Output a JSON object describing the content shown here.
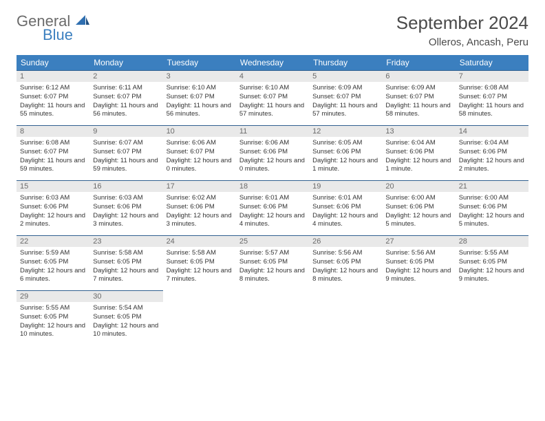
{
  "brand": {
    "line1": "General",
    "line2": "Blue"
  },
  "title": "September 2024",
  "location": "Olleros, Ancash, Peru",
  "colors": {
    "header_bg": "#3b7fbf",
    "header_fg": "#ffffff",
    "daynum_bg": "#e9e9e9",
    "daynum_fg": "#6a6a6a",
    "row_border": "#2f5f8f",
    "logo_gray": "#6b6b6b",
    "logo_blue": "#3b7fbf",
    "text": "#333333"
  },
  "calendar": {
    "type": "table",
    "columns": [
      "Sunday",
      "Monday",
      "Tuesday",
      "Wednesday",
      "Thursday",
      "Friday",
      "Saturday"
    ],
    "col_width_pct": 14.28,
    "header_fontsize": 12,
    "cell_fontsize": 9.5,
    "daynum_fontsize": 11
  },
  "days": [
    {
      "n": "1",
      "sunrise": "Sunrise: 6:12 AM",
      "sunset": "Sunset: 6:07 PM",
      "day": "Daylight: 11 hours and 55 minutes."
    },
    {
      "n": "2",
      "sunrise": "Sunrise: 6:11 AM",
      "sunset": "Sunset: 6:07 PM",
      "day": "Daylight: 11 hours and 56 minutes."
    },
    {
      "n": "3",
      "sunrise": "Sunrise: 6:10 AM",
      "sunset": "Sunset: 6:07 PM",
      "day": "Daylight: 11 hours and 56 minutes."
    },
    {
      "n": "4",
      "sunrise": "Sunrise: 6:10 AM",
      "sunset": "Sunset: 6:07 PM",
      "day": "Daylight: 11 hours and 57 minutes."
    },
    {
      "n": "5",
      "sunrise": "Sunrise: 6:09 AM",
      "sunset": "Sunset: 6:07 PM",
      "day": "Daylight: 11 hours and 57 minutes."
    },
    {
      "n": "6",
      "sunrise": "Sunrise: 6:09 AM",
      "sunset": "Sunset: 6:07 PM",
      "day": "Daylight: 11 hours and 58 minutes."
    },
    {
      "n": "7",
      "sunrise": "Sunrise: 6:08 AM",
      "sunset": "Sunset: 6:07 PM",
      "day": "Daylight: 11 hours and 58 minutes."
    },
    {
      "n": "8",
      "sunrise": "Sunrise: 6:08 AM",
      "sunset": "Sunset: 6:07 PM",
      "day": "Daylight: 11 hours and 59 minutes."
    },
    {
      "n": "9",
      "sunrise": "Sunrise: 6:07 AM",
      "sunset": "Sunset: 6:07 PM",
      "day": "Daylight: 11 hours and 59 minutes."
    },
    {
      "n": "10",
      "sunrise": "Sunrise: 6:06 AM",
      "sunset": "Sunset: 6:07 PM",
      "day": "Daylight: 12 hours and 0 minutes."
    },
    {
      "n": "11",
      "sunrise": "Sunrise: 6:06 AM",
      "sunset": "Sunset: 6:06 PM",
      "day": "Daylight: 12 hours and 0 minutes."
    },
    {
      "n": "12",
      "sunrise": "Sunrise: 6:05 AM",
      "sunset": "Sunset: 6:06 PM",
      "day": "Daylight: 12 hours and 1 minute."
    },
    {
      "n": "13",
      "sunrise": "Sunrise: 6:04 AM",
      "sunset": "Sunset: 6:06 PM",
      "day": "Daylight: 12 hours and 1 minute."
    },
    {
      "n": "14",
      "sunrise": "Sunrise: 6:04 AM",
      "sunset": "Sunset: 6:06 PM",
      "day": "Daylight: 12 hours and 2 minutes."
    },
    {
      "n": "15",
      "sunrise": "Sunrise: 6:03 AM",
      "sunset": "Sunset: 6:06 PM",
      "day": "Daylight: 12 hours and 2 minutes."
    },
    {
      "n": "16",
      "sunrise": "Sunrise: 6:03 AM",
      "sunset": "Sunset: 6:06 PM",
      "day": "Daylight: 12 hours and 3 minutes."
    },
    {
      "n": "17",
      "sunrise": "Sunrise: 6:02 AM",
      "sunset": "Sunset: 6:06 PM",
      "day": "Daylight: 12 hours and 3 minutes."
    },
    {
      "n": "18",
      "sunrise": "Sunrise: 6:01 AM",
      "sunset": "Sunset: 6:06 PM",
      "day": "Daylight: 12 hours and 4 minutes."
    },
    {
      "n": "19",
      "sunrise": "Sunrise: 6:01 AM",
      "sunset": "Sunset: 6:06 PM",
      "day": "Daylight: 12 hours and 4 minutes."
    },
    {
      "n": "20",
      "sunrise": "Sunrise: 6:00 AM",
      "sunset": "Sunset: 6:06 PM",
      "day": "Daylight: 12 hours and 5 minutes."
    },
    {
      "n": "21",
      "sunrise": "Sunrise: 6:00 AM",
      "sunset": "Sunset: 6:06 PM",
      "day": "Daylight: 12 hours and 5 minutes."
    },
    {
      "n": "22",
      "sunrise": "Sunrise: 5:59 AM",
      "sunset": "Sunset: 6:05 PM",
      "day": "Daylight: 12 hours and 6 minutes."
    },
    {
      "n": "23",
      "sunrise": "Sunrise: 5:58 AM",
      "sunset": "Sunset: 6:05 PM",
      "day": "Daylight: 12 hours and 7 minutes."
    },
    {
      "n": "24",
      "sunrise": "Sunrise: 5:58 AM",
      "sunset": "Sunset: 6:05 PM",
      "day": "Daylight: 12 hours and 7 minutes."
    },
    {
      "n": "25",
      "sunrise": "Sunrise: 5:57 AM",
      "sunset": "Sunset: 6:05 PM",
      "day": "Daylight: 12 hours and 8 minutes."
    },
    {
      "n": "26",
      "sunrise": "Sunrise: 5:56 AM",
      "sunset": "Sunset: 6:05 PM",
      "day": "Daylight: 12 hours and 8 minutes."
    },
    {
      "n": "27",
      "sunrise": "Sunrise: 5:56 AM",
      "sunset": "Sunset: 6:05 PM",
      "day": "Daylight: 12 hours and 9 minutes."
    },
    {
      "n": "28",
      "sunrise": "Sunrise: 5:55 AM",
      "sunset": "Sunset: 6:05 PM",
      "day": "Daylight: 12 hours and 9 minutes."
    },
    {
      "n": "29",
      "sunrise": "Sunrise: 5:55 AM",
      "sunset": "Sunset: 6:05 PM",
      "day": "Daylight: 12 hours and 10 minutes."
    },
    {
      "n": "30",
      "sunrise": "Sunrise: 5:54 AM",
      "sunset": "Sunset: 6:05 PM",
      "day": "Daylight: 12 hours and 10 minutes."
    }
  ]
}
